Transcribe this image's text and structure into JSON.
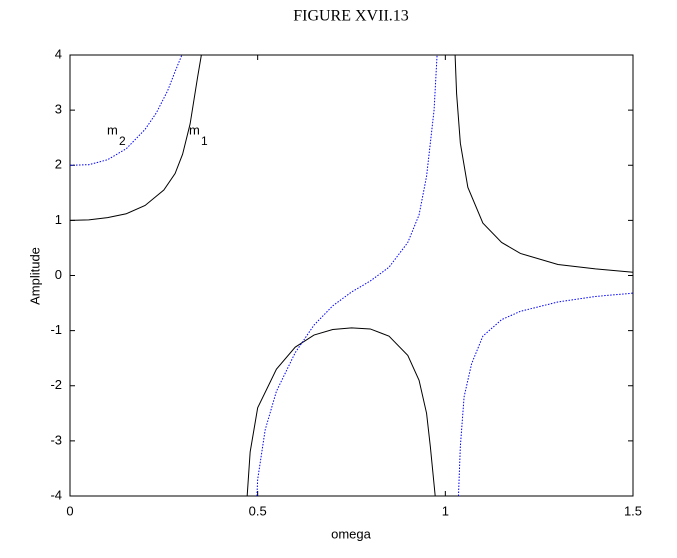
{
  "chart_data": {
    "type": "line",
    "title": "FIGURE XVII.13",
    "x_label": "omega",
    "y_label": "Amplitude",
    "xlim": [
      0,
      1.5
    ],
    "xticks": [
      0,
      0.5,
      1,
      1.5
    ],
    "ylim": [
      -4,
      4
    ],
    "yticks": [
      -4,
      -3,
      -2,
      -1,
      0,
      1,
      2,
      3,
      4
    ],
    "grid": false,
    "series": [
      {
        "color": "#000000",
        "style": "solid",
        "x": [
          0,
          0.05,
          0.1,
          0.15,
          0.2,
          0.25,
          0.28,
          0.3,
          0.32,
          0.34,
          0.35,
          null,
          0.472,
          0.48,
          0.5,
          0.55,
          0.6,
          0.65,
          0.7,
          0.75,
          0.8,
          0.85,
          0.9,
          0.93,
          0.95,
          0.96,
          0.973,
          null,
          1.026,
          1.03,
          1.04,
          1.06,
          1.1,
          1.15,
          1.2,
          1.3,
          1.4,
          1.5
        ],
        "values": [
          1,
          1.01,
          1.05,
          1.12,
          1.27,
          1.55,
          1.85,
          2.2,
          2.75,
          3.6,
          4,
          null,
          -4,
          -3.2,
          -2.4,
          -1.7,
          -1.3,
          -1.08,
          -0.98,
          -0.95,
          -0.97,
          -1.1,
          -1.45,
          -1.9,
          -2.5,
          -3.1,
          -4,
          null,
          4,
          3.3,
          2.4,
          1.6,
          0.95,
          0.6,
          0.4,
          0.2,
          0.12,
          0.06
        ]
      },
      {
        "color": "#0000ff",
        "style": "dotted",
        "x": [
          0,
          0.05,
          0.1,
          0.15,
          0.2,
          0.23,
          0.26,
          0.28,
          0.298,
          null,
          0.498,
          0.5,
          0.52,
          0.55,
          0.6,
          0.65,
          0.7,
          0.75,
          0.8,
          0.85,
          0.9,
          0.93,
          0.95,
          0.97,
          0.978,
          null,
          1.035,
          1.04,
          1.05,
          1.07,
          1.1,
          1.15,
          1.2,
          1.3,
          1.4,
          1.5
        ],
        "values": [
          2,
          2.01,
          2.1,
          2.3,
          2.65,
          2.95,
          3.35,
          3.7,
          4,
          null,
          -4,
          -3.7,
          -2.8,
          -2.1,
          -1.4,
          -0.9,
          -0.55,
          -0.3,
          -0.1,
          0.15,
          0.6,
          1.1,
          1.8,
          3,
          4,
          null,
          -4,
          -3.1,
          -2.2,
          -1.6,
          -1.1,
          -0.8,
          -0.65,
          -0.48,
          -0.38,
          -0.32
        ]
      }
    ],
    "annotations": [
      {
        "text": "m",
        "subscript": "2"
      },
      {
        "text": "m",
        "subscript": "1"
      }
    ]
  }
}
